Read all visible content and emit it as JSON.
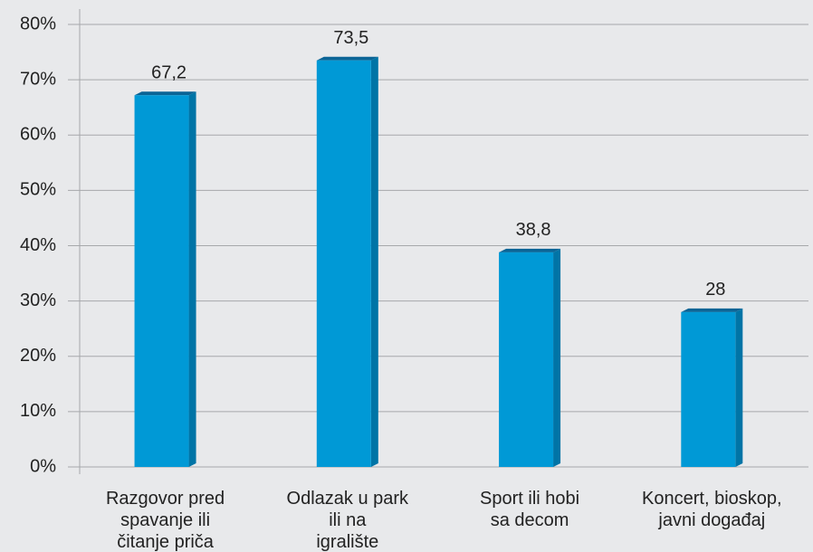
{
  "chart_data": {
    "type": "bar",
    "categories": [
      "Razgovor pred\nspavanje ili\nčitanje priča",
      "Odlazak u park\nili na\nigralište",
      "Sport ili hobi\nsa decom",
      "Koncert, bioskop,\njavni događaj"
    ],
    "values": [
      67.2,
      73.5,
      38.8,
      28
    ],
    "value_labels": [
      "67,2",
      "73,5",
      "38,8",
      "28"
    ],
    "color": "#0099d6",
    "ylim": [
      0,
      80
    ],
    "yticks": [
      {
        "value": 0,
        "label": "0%"
      },
      {
        "value": 10,
        "label": "10%"
      },
      {
        "value": 20,
        "label": "20%"
      },
      {
        "value": 30,
        "label": "30%"
      },
      {
        "value": 40,
        "label": "40%"
      },
      {
        "value": 50,
        "label": "50%"
      },
      {
        "value": 60,
        "label": "60%"
      },
      {
        "value": 70,
        "label": "70%"
      },
      {
        "value": 80,
        "label": "80%"
      }
    ],
    "grid": true
  }
}
